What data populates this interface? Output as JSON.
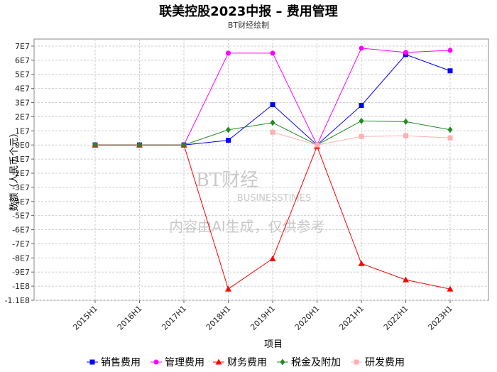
{
  "title": "联美控股2023中报 – 费用管理",
  "subtitle": "BT财经绘制",
  "watermark": {
    "brand": "BT财经",
    "brand_en": "BUSINESSTIMES",
    "notice": "内容由AI生成，仅供参考"
  },
  "chart_data": {
    "type": "line",
    "xlabel": "项目",
    "ylabel": "数额（人民币个元）",
    "categories": [
      "2015H1",
      "2016H1",
      "2017H1",
      "2018H1",
      "2019H1",
      "2020H1",
      "2021H1",
      "2022H1",
      "2023H1"
    ],
    "ylim": [
      -110000000,
      75000000
    ],
    "yticks": [
      70000000,
      60000000,
      50000000,
      40000000,
      30000000,
      20000000,
      10000000,
      0,
      -10000000,
      -20000000,
      -30000000,
      -40000000,
      -50000000,
      -60000000,
      -70000000,
      -80000000,
      -90000000,
      -100000000,
      -110000000
    ],
    "ytick_labels": [
      "7E7",
      "6E7",
      "5E7",
      "4E7",
      "3E7",
      "2E7",
      "1E7",
      "0E0",
      "-1E7",
      "-2E7",
      "-3E7",
      "-4E7",
      "-5E7",
      "-6E7",
      "-7E7",
      "-8E7",
      "-9E7",
      "-1E8",
      "-1.1E8"
    ],
    "grid": true,
    "legend_position": "bottom",
    "series": [
      {
        "name": "销售费用",
        "color": "#0000ff",
        "marker": "square",
        "values": [
          0,
          0,
          0,
          3300000,
          28500000,
          0,
          28000000,
          64000000,
          52500000
        ]
      },
      {
        "name": "管理费用",
        "color": "#ff00ff",
        "marker": "circle",
        "values": [
          0,
          0,
          0,
          65000000,
          65000000,
          0,
          68500000,
          65500000,
          67000000
        ]
      },
      {
        "name": "财务费用",
        "color": "#ff0000",
        "marker": "triangle",
        "values": [
          0,
          0,
          0,
          -102000000,
          -80500000,
          -1000000,
          -84000000,
          -95500000,
          -102000000
        ]
      },
      {
        "name": "税金及附加",
        "color": "#228b22",
        "marker": "diamond",
        "values": [
          0,
          0,
          0,
          10700000,
          15800000,
          0,
          17000000,
          16500000,
          10800000
        ]
      },
      {
        "name": "研发费用",
        "color": "#ffb0b0",
        "marker": "square",
        "values": [
          null,
          null,
          null,
          null,
          9000000,
          0,
          6000000,
          6500000,
          5000000
        ]
      }
    ]
  }
}
